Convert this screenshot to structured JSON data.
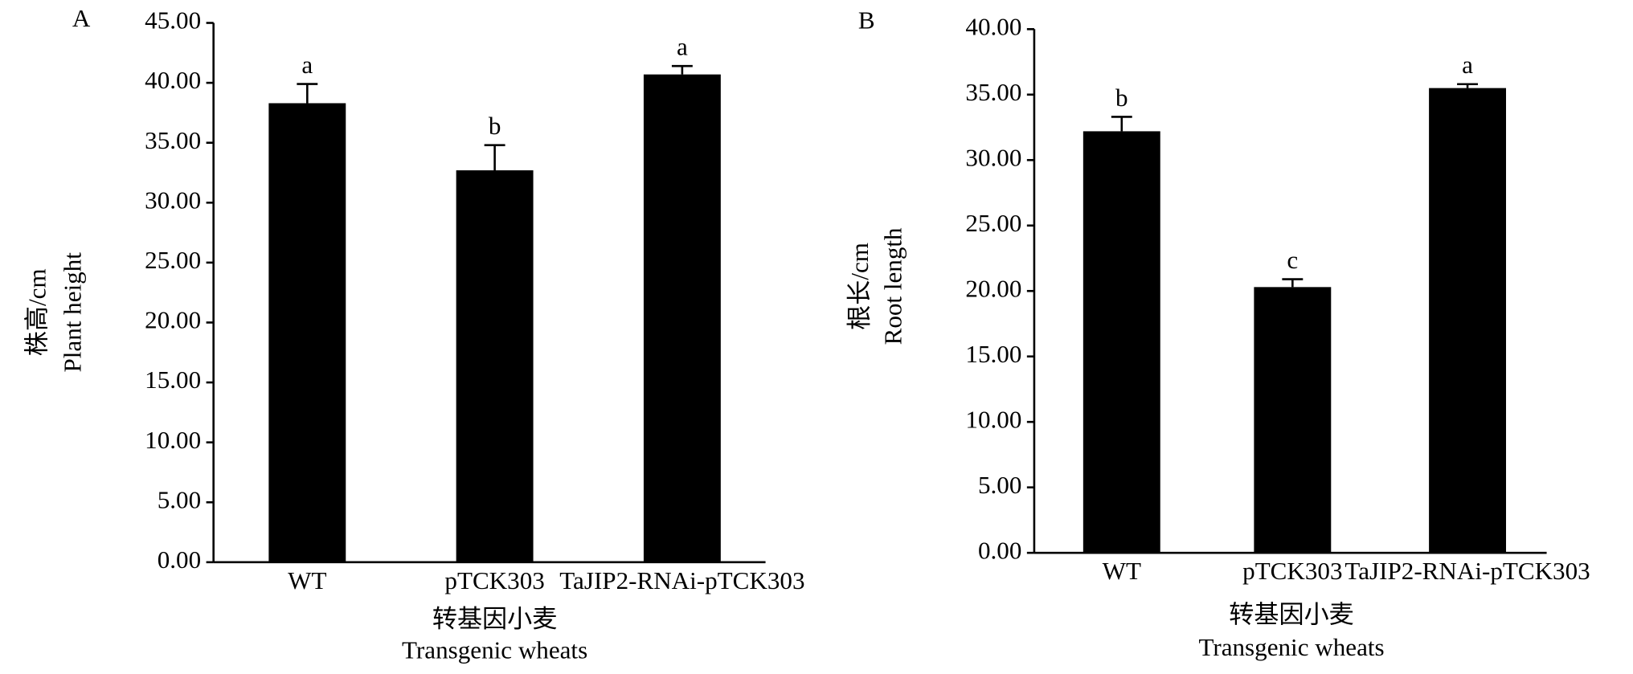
{
  "chart_data": [
    {
      "type": "bar",
      "panel": "A",
      "ylabel": [
        "株高/cm",
        "Plant height"
      ],
      "xlabel": [
        "转基因小麦",
        "Transgenic wheats"
      ],
      "categories": [
        "WT",
        "pTCK303",
        "TaJIP2-RNAi-pTCK303"
      ],
      "values": [
        38.3,
        32.7,
        40.7
      ],
      "errors": [
        1.6,
        2.1,
        0.7
      ],
      "annotations": [
        "a",
        "b",
        "a"
      ],
      "color": "#000000",
      "ylim": [
        0,
        45
      ],
      "yticks": [
        {
          "value": 0,
          "label": "0.00"
        },
        {
          "value": 5,
          "label": "5.00"
        },
        {
          "value": 10,
          "label": "10.00"
        },
        {
          "value": 15,
          "label": "15.00"
        },
        {
          "value": 20,
          "label": "20.00"
        },
        {
          "value": 25,
          "label": "25.00"
        },
        {
          "value": 30,
          "label": "30.00"
        },
        {
          "value": 35,
          "label": "35.00"
        },
        {
          "value": 40,
          "label": "40.00"
        },
        {
          "value": 45,
          "label": "45.00"
        }
      ]
    },
    {
      "type": "bar",
      "panel": "B",
      "ylabel": [
        "根长/cm",
        "Root length"
      ],
      "xlabel": [
        "转基因小麦",
        "Transgenic wheats"
      ],
      "categories": [
        "WT",
        "pTCK303",
        "TaJIP2-RNAi-pTCK303"
      ],
      "values": [
        32.2,
        20.3,
        35.5
      ],
      "errors": [
        1.1,
        0.6,
        0.3
      ],
      "annotations": [
        "b",
        "c",
        "a"
      ],
      "color": "#000000",
      "ylim": [
        0,
        40
      ],
      "yticks": [
        {
          "value": 0,
          "label": "0.00"
        },
        {
          "value": 5,
          "label": "5.00"
        },
        {
          "value": 10,
          "label": "10.00"
        },
        {
          "value": 15,
          "label": "15.00"
        },
        {
          "value": 20,
          "label": "20.00"
        },
        {
          "value": 25,
          "label": "25.00"
        },
        {
          "value": 30,
          "label": "30.00"
        },
        {
          "value": 35,
          "label": "35.00"
        },
        {
          "value": 40,
          "label": "40.00"
        }
      ]
    }
  ]
}
